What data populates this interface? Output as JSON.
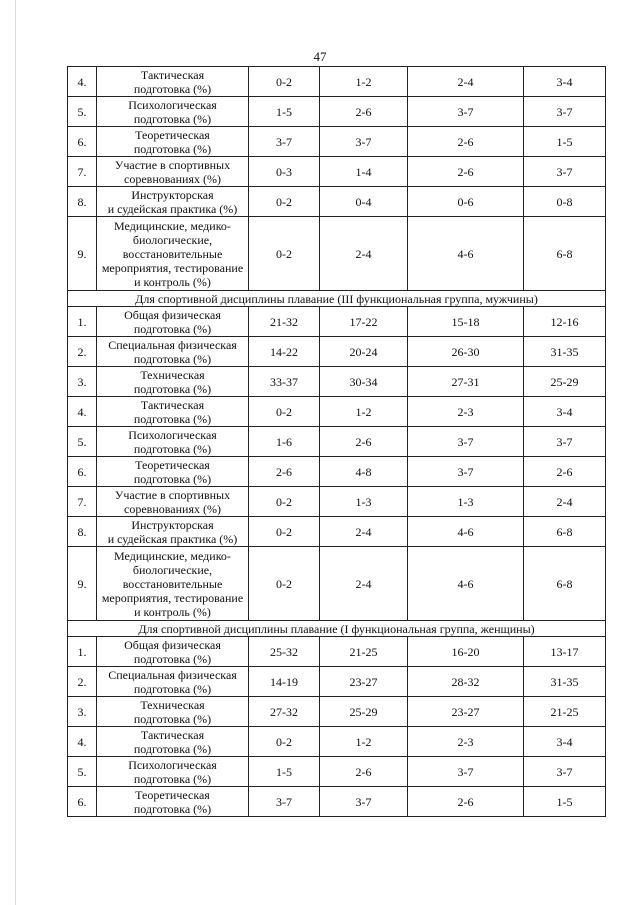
{
  "page_number": "47",
  "blocks": [
    {
      "section": "",
      "rows": [
        {
          "n": "4.",
          "name": [
            "Тактическая",
            "подготовка (%)"
          ],
          "v": [
            "0-2",
            "1-2",
            "2-4",
            "3-4"
          ]
        },
        {
          "n": "5.",
          "name": [
            "Психологическая",
            "подготовка (%)"
          ],
          "v": [
            "1-5",
            "2-6",
            "3-7",
            "3-7"
          ]
        },
        {
          "n": "6.",
          "name": [
            "Теоретическая",
            "подготовка (%)"
          ],
          "v": [
            "3-7",
            "3-7",
            "2-6",
            "1-5"
          ]
        },
        {
          "n": "7.",
          "name": [
            "Участие в спортивных",
            "соревнованиях (%)"
          ],
          "v": [
            "0-3",
            "1-4",
            "2-6",
            "3-7"
          ]
        },
        {
          "n": "8.",
          "name": [
            "Инструкторская",
            "и судейская практика (%)"
          ],
          "v": [
            "0-2",
            "0-4",
            "0-6",
            "0-8"
          ]
        },
        {
          "n": "9.",
          "name": [
            "Медицинские, медико-",
            "биологические,",
            "восстановительные",
            "мероприятия, тестирование",
            "и контроль (%)"
          ],
          "v": [
            "0-2",
            "2-4",
            "4-6",
            "6-8"
          ]
        }
      ]
    },
    {
      "section": "Для спортивной дисциплины плавание (III функциональная группа, мужчины)",
      "rows": [
        {
          "n": "1.",
          "name": [
            "Общая физическая",
            "подготовка (%)"
          ],
          "v": [
            "21-32",
            "17-22",
            "15-18",
            "12-16"
          ]
        },
        {
          "n": "2.",
          "name": [
            "Специальная физическая",
            "подготовка (%)"
          ],
          "v": [
            "14-22",
            "20-24",
            "26-30",
            "31-35"
          ]
        },
        {
          "n": "3.",
          "name": [
            "Техническая",
            "подготовка (%)"
          ],
          "v": [
            "33-37",
            "30-34",
            "27-31",
            "25-29"
          ]
        },
        {
          "n": "4.",
          "name": [
            "Тактическая",
            "подготовка (%)"
          ],
          "v": [
            "0-2",
            "1-2",
            "2-3",
            "3-4"
          ]
        },
        {
          "n": "5.",
          "name": [
            "Психологическая",
            "подготовка (%)"
          ],
          "v": [
            "1-6",
            "2-6",
            "3-7",
            "3-7"
          ]
        },
        {
          "n": "6.",
          "name": [
            "Теоретическая",
            "подготовка (%)"
          ],
          "v": [
            "2-6",
            "4-8",
            "3-7",
            "2-6"
          ]
        },
        {
          "n": "7.",
          "name": [
            "Участие в спортивных",
            "соревнованиях (%)"
          ],
          "v": [
            "0-2",
            "1-3",
            "1-3",
            "2-4"
          ]
        },
        {
          "n": "8.",
          "name": [
            "Инструкторская",
            "и судейская практика (%)"
          ],
          "v": [
            "0-2",
            "2-4",
            "4-6",
            "6-8"
          ]
        },
        {
          "n": "9.",
          "name": [
            "Медицинские, медико-",
            "биологические,",
            "восстановительные",
            "мероприятия, тестирование",
            "и контроль (%)"
          ],
          "v": [
            "0-2",
            "2-4",
            "4-6",
            "6-8"
          ]
        }
      ]
    },
    {
      "section": "Для спортивной дисциплины плавание (I функциональная группа, женщины)",
      "rows": [
        {
          "n": "1.",
          "name": [
            "Общая физическая",
            "подготовка (%)"
          ],
          "v": [
            "25-32",
            "21-25",
            "16-20",
            "13-17"
          ]
        },
        {
          "n": "2.",
          "name": [
            "Специальная физическая",
            "подготовка (%)"
          ],
          "v": [
            "14-19",
            "23-27",
            "28-32",
            "31-35"
          ]
        },
        {
          "n": "3.",
          "name": [
            "Техническая",
            "подготовка (%)"
          ],
          "v": [
            "27-32",
            "25-29",
            "23-27",
            "21-25"
          ]
        },
        {
          "n": "4.",
          "name": [
            "Тактическая",
            "подготовка (%)"
          ],
          "v": [
            "0-2",
            "1-2",
            "2-3",
            "3-4"
          ]
        },
        {
          "n": "5.",
          "name": [
            "Психологическая",
            "подготовка (%)"
          ],
          "v": [
            "1-5",
            "2-6",
            "3-7",
            "3-7"
          ]
        },
        {
          "n": "6.",
          "name": [
            "Теоретическая",
            "подготовка (%)"
          ],
          "v": [
            "3-7",
            "3-7",
            "2-6",
            "1-5"
          ]
        }
      ]
    }
  ]
}
